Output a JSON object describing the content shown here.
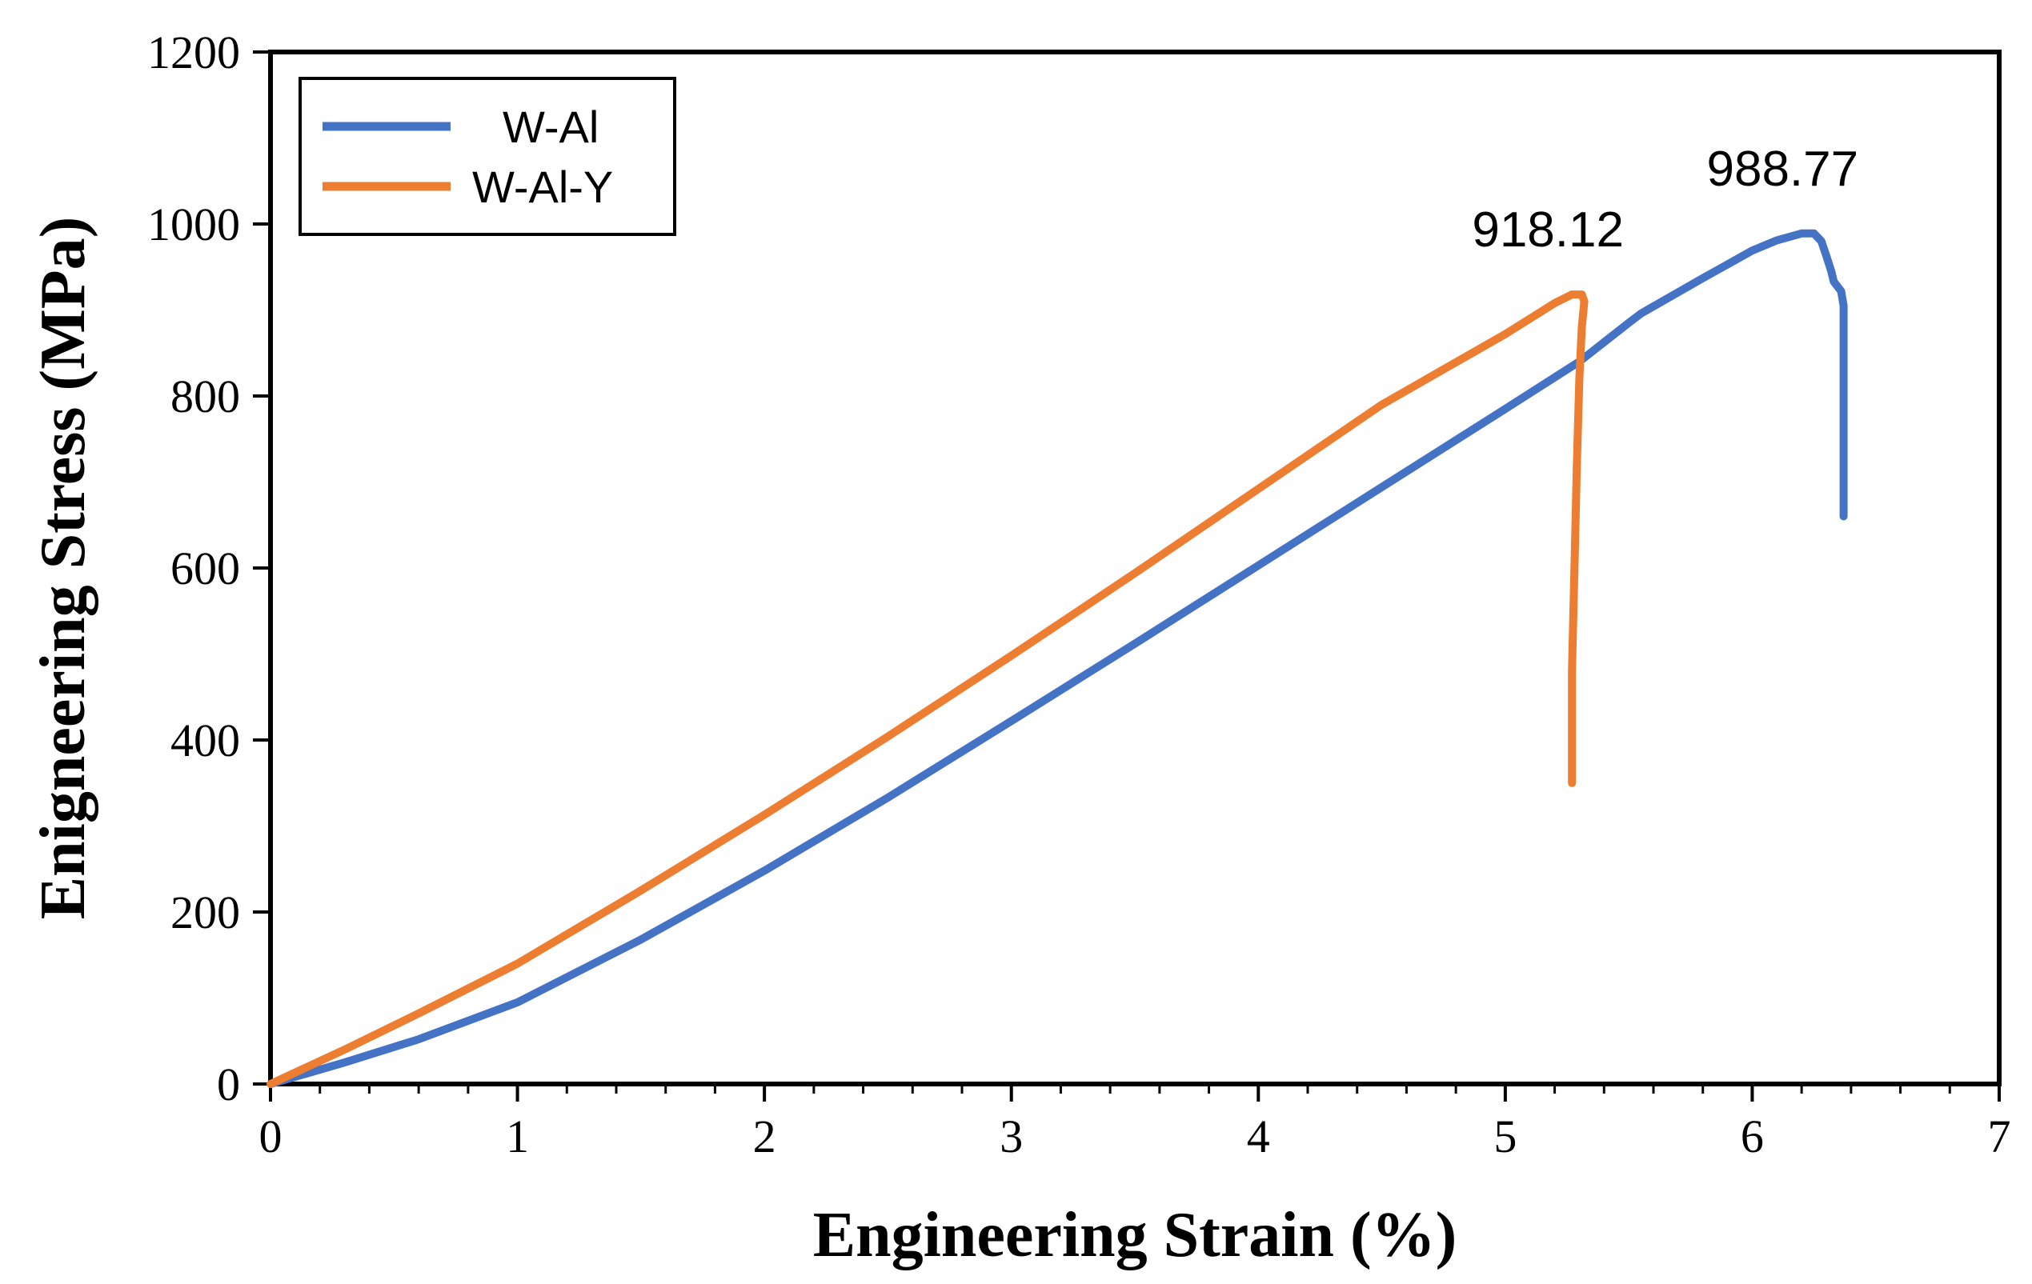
{
  "chart_data": {
    "type": "line",
    "title": "",
    "xlabel": "Engineering Strain (%)",
    "ylabel": "Enigneering Stress (MPa)",
    "xlim": [
      0,
      7
    ],
    "ylim": [
      0,
      1200
    ],
    "x_ticks": [
      0,
      1,
      2,
      3,
      4,
      5,
      6,
      7
    ],
    "y_ticks": [
      0,
      200,
      400,
      600,
      800,
      1000,
      1200
    ],
    "grid": false,
    "legend_position": "top-left",
    "series": [
      {
        "name": "W-Al",
        "color": "#4472C4",
        "x": [
          0,
          0.3,
          0.6,
          1.0,
          1.5,
          2.0,
          2.5,
          3.0,
          3.5,
          4.0,
          4.5,
          5.0,
          5.3,
          5.5,
          5.55,
          5.8,
          6.0,
          6.1,
          6.2,
          6.25,
          6.28,
          6.3,
          6.32,
          6.33,
          6.36,
          6.37,
          6.37,
          6.37,
          6.37
        ],
        "y": [
          0,
          25,
          52,
          95,
          168,
          248,
          333,
          422,
          512,
          603,
          694,
          785,
          840,
          885,
          896,
          937,
          969,
          981,
          989,
          989,
          980,
          963,
          945,
          933,
          922,
          905,
          850,
          750,
          660
        ]
      },
      {
        "name": "W-Al-Y",
        "color": "#ED7D31",
        "x": [
          0,
          0.3,
          0.6,
          1.0,
          1.5,
          2.0,
          2.5,
          3.0,
          3.5,
          4.0,
          4.5,
          5.0,
          5.2,
          5.27,
          5.31,
          5.32,
          5.31,
          5.3,
          5.29,
          5.28,
          5.27,
          5.27,
          5.27
        ],
        "y": [
          0,
          40,
          82,
          140,
          225,
          313,
          404,
          498,
          594,
          692,
          790,
          872,
          908,
          918,
          918,
          910,
          880,
          820,
          720,
          600,
          480,
          400,
          350
        ]
      }
    ],
    "annotations": [
      {
        "text": "988.77",
        "x": 6.22,
        "y": 989
      },
      {
        "text": "918.12",
        "x": 5.27,
        "y": 918
      }
    ]
  }
}
